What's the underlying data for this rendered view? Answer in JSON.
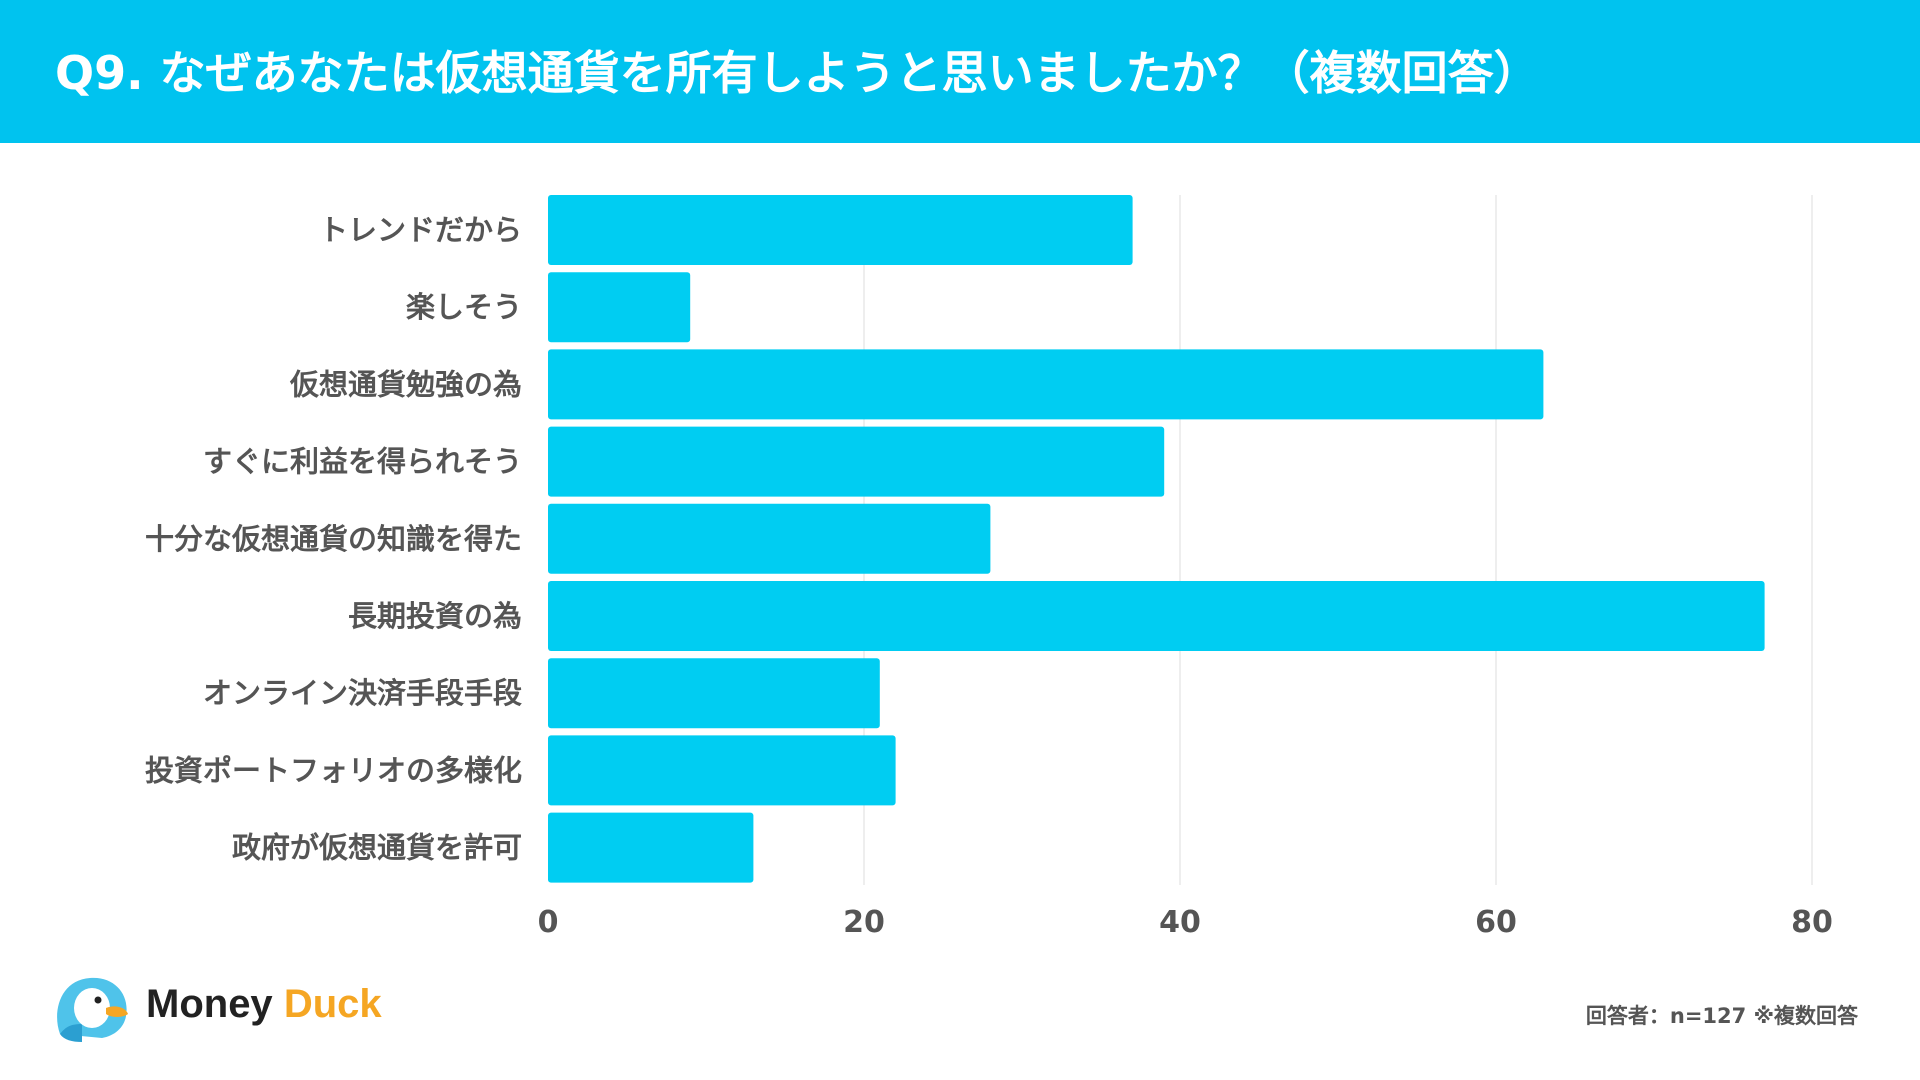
{
  "header": {
    "title": "Q9. なぜあなたは仮想通貨を所有しようと思いましたか？（複数回答）"
  },
  "colors": {
    "accent": "#00c3ef",
    "bar": "#00cdf2",
    "grid": "#e8e8e8",
    "text": "#555555"
  },
  "chart_data": {
    "type": "bar",
    "orientation": "horizontal",
    "title": "Q9. なぜあなたは仮想通貨を所有しようと思いましたか？（複数回答）",
    "categories": [
      "トレンドだから",
      "楽しそう",
      "仮想通貨勉強の為",
      "すぐに利益を得られそう",
      "十分な仮想通貨の知識を得た",
      "長期投資の為",
      "オンライン決済手段手段",
      "投資ポートフォリオの多様化",
      "政府が仮想通貨を許可"
    ],
    "values": [
      37,
      9,
      63,
      39,
      28,
      77,
      21,
      22,
      13
    ],
    "xlim": [
      0,
      80
    ],
    "xticks": [
      0,
      20,
      40,
      60,
      80
    ],
    "xtick_labels": [
      "0",
      "20",
      "40",
      "60",
      "80"
    ],
    "grid": "vertical",
    "xlabel": "",
    "ylabel": ""
  },
  "footer": {
    "logo_money": "Money",
    "logo_duck": "Duck",
    "logo_icon": "duck-icon",
    "note": "回答者：n=127 ※複数回答"
  }
}
